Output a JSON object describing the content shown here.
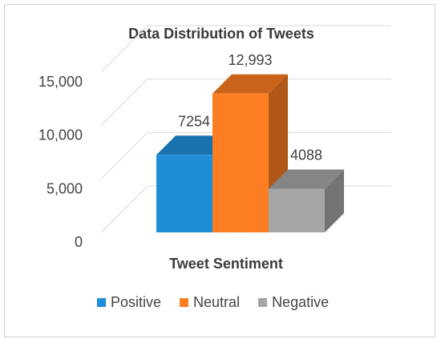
{
  "chart_data": {
    "type": "bar",
    "style": "3d-clustered-column",
    "title": "Data Distribution of Tweets",
    "xlabel": "Tweet Sentiment",
    "ylabel": "",
    "categories": [
      ""
    ],
    "series": [
      {
        "name": "Positive",
        "value": 7254,
        "label": "7254",
        "color": "#1f8ed8"
      },
      {
        "name": "Neutral",
        "value": 12993,
        "label": "12,993",
        "color": "#fd7d22"
      },
      {
        "name": "Negative",
        "value": 4088,
        "label": "4088",
        "color": "#a6a6a6"
      }
    ],
    "ylim": [
      0,
      15000
    ],
    "yticks": [
      0,
      5000,
      10000,
      15000
    ],
    "ytick_labels": [
      "0",
      "5,000",
      "10,000",
      "15,000"
    ],
    "grid": true,
    "legend_position": "bottom"
  }
}
